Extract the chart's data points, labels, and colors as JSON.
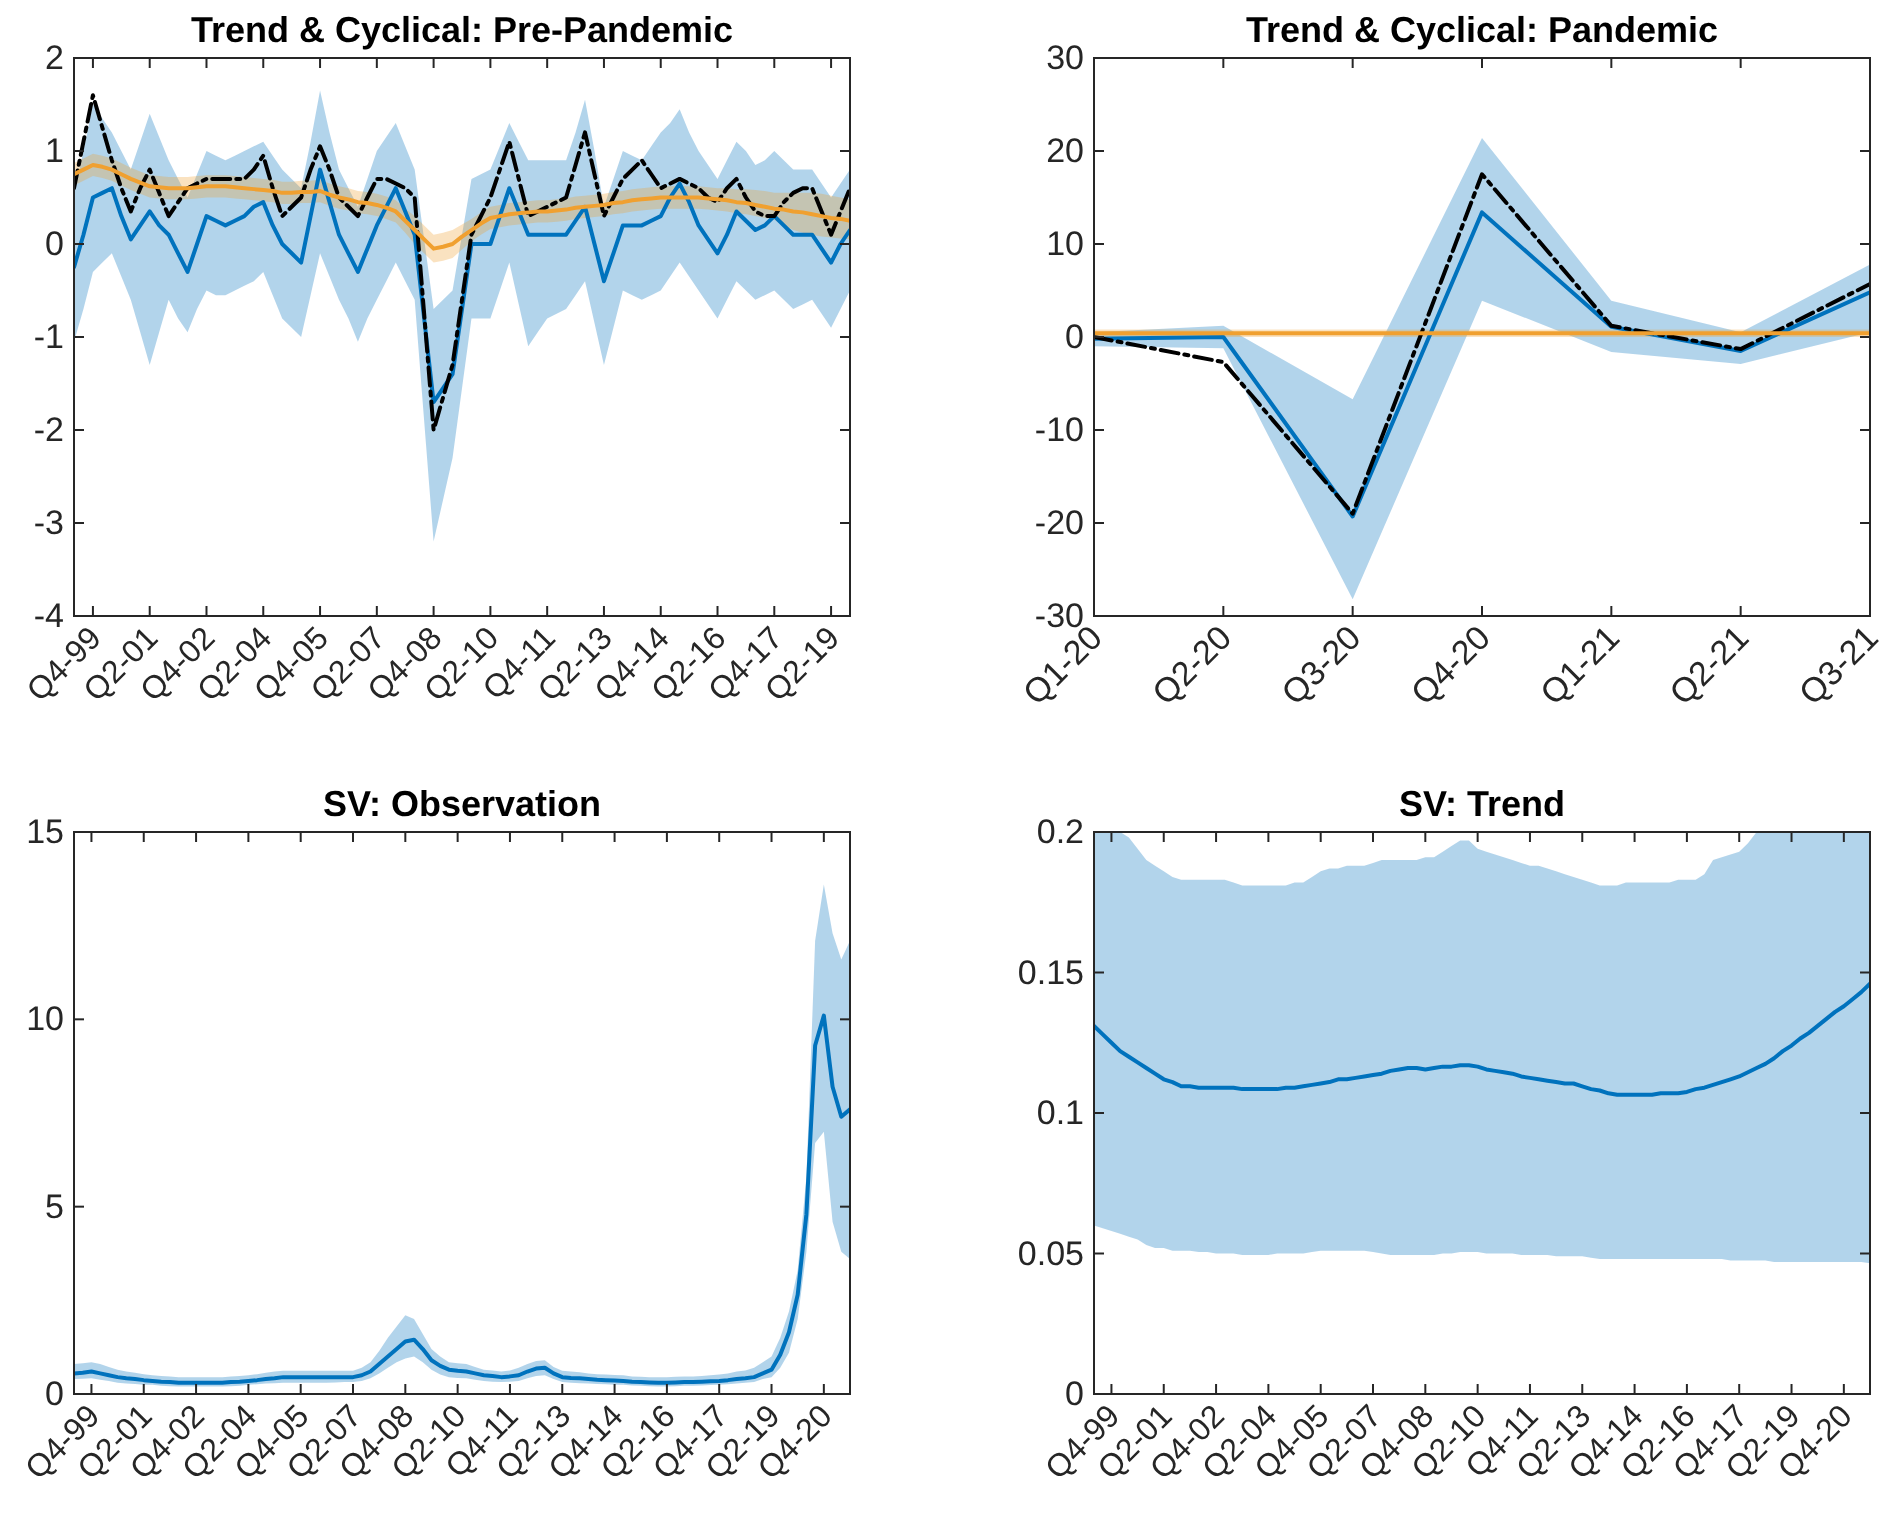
{
  "chart_data": [
    {
      "type": "line",
      "title": "Trend & Cyclical: Pre-Pandemic",
      "ylim": [
        -4,
        2
      ],
      "yticks": [
        -4,
        -3,
        -2,
        -1,
        0,
        1,
        2
      ],
      "categories": [
        null,
        null,
        "Q4-99",
        null,
        null,
        null,
        null,
        null,
        "Q2-01",
        null,
        null,
        null,
        null,
        null,
        "Q4-02",
        null,
        null,
        null,
        null,
        null,
        "Q2-04",
        null,
        null,
        null,
        null,
        null,
        "Q4-05",
        null,
        null,
        null,
        null,
        null,
        "Q2-07",
        null,
        null,
        null,
        null,
        null,
        "Q4-08",
        null,
        null,
        null,
        null,
        null,
        "Q2-10",
        null,
        null,
        null,
        null,
        null,
        "Q4-11",
        null,
        null,
        null,
        null,
        null,
        "Q2-13",
        null,
        null,
        null,
        null,
        null,
        "Q4-14",
        null,
        null,
        null,
        null,
        null,
        "Q2-16",
        null,
        null,
        null,
        null,
        null,
        "Q4-17",
        null,
        null,
        null,
        null,
        null,
        "Q2-19",
        null,
        null
      ],
      "series": [
        {
          "color": "#0072bd",
          "line_style": "solid",
          "values": [
            -0.25,
            0.1,
            0.5,
            0.55,
            0.6,
            0.3,
            0.05,
            0.2,
            0.35,
            0.2,
            0.1,
            -0.1,
            -0.3,
            0.0,
            0.3,
            0.25,
            0.2,
            0.25,
            0.3,
            0.4,
            0.45,
            0.2,
            0.0,
            -0.1,
            -0.2,
            0.3,
            0.8,
            0.45,
            0.1,
            -0.1,
            -0.3,
            -0.05,
            0.2,
            0.4,
            0.6,
            0.35,
            0.1,
            -0.8,
            -1.7,
            -1.55,
            -1.4,
            -0.7,
            0.0,
            0.0,
            0.0,
            0.3,
            0.6,
            0.35,
            0.1,
            0.1,
            0.1,
            0.1,
            0.1,
            0.25,
            0.4,
            0.0,
            -0.4,
            -0.1,
            0.2,
            0.2,
            0.2,
            0.25,
            0.3,
            0.5,
            0.65,
            0.45,
            0.2,
            0.05,
            -0.1,
            0.1,
            0.35,
            0.25,
            0.15,
            0.2,
            0.3,
            0.2,
            0.1,
            0.1,
            0.1,
            -0.05,
            -0.2,
            0.0,
            0.15
          ],
          "lower": [
            -1.05,
            -0.7,
            -0.3,
            -0.2,
            -0.1,
            -0.35,
            -0.6,
            -0.95,
            -1.3,
            -0.95,
            -0.6,
            -0.8,
            -0.95,
            -0.7,
            -0.5,
            -0.55,
            -0.55,
            -0.5,
            -0.45,
            -0.4,
            -0.3,
            -0.55,
            -0.8,
            -0.9,
            -1.0,
            -0.55,
            -0.1,
            -0.35,
            -0.6,
            -0.8,
            -1.05,
            -0.8,
            -0.6,
            -0.4,
            -0.2,
            -0.4,
            -0.6,
            -1.9,
            -3.2,
            -2.75,
            -2.3,
            -1.55,
            -0.8,
            -0.8,
            -0.8,
            -0.5,
            -0.2,
            -0.65,
            -1.1,
            -0.95,
            -0.8,
            -0.75,
            -0.7,
            -0.55,
            -0.4,
            -0.85,
            -1.3,
            -0.9,
            -0.5,
            -0.55,
            -0.6,
            -0.55,
            -0.5,
            -0.35,
            -0.2,
            -0.35,
            -0.5,
            -0.65,
            -0.8,
            -0.6,
            -0.4,
            -0.5,
            -0.6,
            -0.55,
            -0.5,
            -0.6,
            -0.7,
            -0.65,
            -0.6,
            -0.75,
            -0.9,
            -0.7,
            -0.5
          ],
          "upper": [
            0.55,
            1.0,
            1.5,
            1.35,
            1.2,
            1.0,
            0.8,
            1.1,
            1.4,
            1.15,
            0.9,
            0.7,
            0.5,
            0.75,
            1.0,
            0.95,
            0.9,
            0.95,
            1.0,
            1.05,
            1.1,
            0.95,
            0.8,
            0.7,
            0.6,
            1.1,
            1.65,
            1.2,
            0.8,
            0.6,
            0.4,
            0.7,
            1.0,
            1.15,
            1.3,
            1.05,
            0.8,
            0.05,
            -0.7,
            -0.6,
            -0.5,
            0.1,
            0.7,
            0.75,
            0.8,
            1.05,
            1.3,
            1.1,
            0.9,
            0.9,
            0.9,
            0.9,
            0.9,
            1.2,
            1.55,
            1.0,
            0.4,
            0.7,
            1.0,
            0.95,
            0.9,
            1.05,
            1.2,
            1.3,
            1.45,
            1.2,
            1.0,
            0.85,
            0.7,
            0.9,
            1.1,
            1.0,
            0.85,
            0.9,
            1.0,
            0.9,
            0.8,
            0.8,
            0.8,
            0.65,
            0.5,
            0.65,
            0.8
          ]
        },
        {
          "color": "#000000",
          "line_style": "dashed",
          "values": [
            0.6,
            1.1,
            1.6,
            1.25,
            0.9,
            0.6,
            0.35,
            0.6,
            0.8,
            0.55,
            0.3,
            0.45,
            0.6,
            0.65,
            0.7,
            0.7,
            0.7,
            0.7,
            0.7,
            0.8,
            0.95,
            0.6,
            0.3,
            0.4,
            0.5,
            0.8,
            1.05,
            0.8,
            0.5,
            0.4,
            0.3,
            0.5,
            0.7,
            0.7,
            0.65,
            0.6,
            0.5,
            -0.75,
            -2.0,
            -1.65,
            -1.3,
            -0.6,
            0.1,
            0.3,
            0.5,
            0.8,
            1.1,
            0.7,
            0.3,
            0.35,
            0.4,
            0.45,
            0.5,
            0.85,
            1.2,
            0.75,
            0.3,
            0.5,
            0.7,
            0.8,
            0.9,
            0.75,
            0.6,
            0.65,
            0.7,
            0.65,
            0.6,
            0.5,
            0.45,
            0.6,
            0.7,
            0.5,
            0.35,
            0.3,
            0.3,
            0.45,
            0.55,
            0.6,
            0.6,
            0.35,
            0.1,
            0.35,
            0.6
          ]
        },
        {
          "color": "#f0a030",
          "line_style": "solid",
          "values": [
            0.75,
            0.8,
            0.85,
            0.83,
            0.8,
            0.75,
            0.7,
            0.66,
            0.62,
            0.61,
            0.6,
            0.6,
            0.6,
            0.61,
            0.62,
            0.62,
            0.62,
            0.61,
            0.6,
            0.59,
            0.58,
            0.57,
            0.55,
            0.55,
            0.56,
            0.56,
            0.57,
            0.53,
            0.5,
            0.48,
            0.45,
            0.44,
            0.42,
            0.39,
            0.35,
            0.25,
            0.15,
            0.05,
            -0.05,
            -0.03,
            0.0,
            0.08,
            0.15,
            0.22,
            0.28,
            0.3,
            0.32,
            0.33,
            0.34,
            0.35,
            0.35,
            0.36,
            0.37,
            0.39,
            0.4,
            0.41,
            0.42,
            0.44,
            0.45,
            0.47,
            0.48,
            0.49,
            0.5,
            0.5,
            0.5,
            0.5,
            0.5,
            0.49,
            0.48,
            0.47,
            0.45,
            0.44,
            0.42,
            0.4,
            0.38,
            0.37,
            0.35,
            0.34,
            0.32,
            0.3,
            0.28,
            0.27,
            0.25
          ],
          "lower": [
            0.63,
            0.68,
            0.73,
            0.71,
            0.68,
            0.63,
            0.58,
            0.54,
            0.5,
            0.49,
            0.48,
            0.48,
            0.48,
            0.49,
            0.5,
            0.5,
            0.5,
            0.49,
            0.48,
            0.47,
            0.46,
            0.45,
            0.43,
            0.43,
            0.44,
            0.44,
            0.45,
            0.41,
            0.38,
            0.36,
            0.33,
            0.32,
            0.3,
            0.27,
            0.23,
            0.12,
            0.0,
            -0.1,
            -0.2,
            -0.18,
            -0.15,
            -0.06,
            0.03,
            0.1,
            0.16,
            0.18,
            0.2,
            0.21,
            0.22,
            0.23,
            0.23,
            0.24,
            0.25,
            0.27,
            0.28,
            0.29,
            0.3,
            0.32,
            0.33,
            0.35,
            0.36,
            0.37,
            0.38,
            0.38,
            0.38,
            0.38,
            0.38,
            0.37,
            0.36,
            0.35,
            0.33,
            0.32,
            0.3,
            0.28,
            0.26,
            0.2,
            0.15,
            0.12,
            0.1,
            0.08,
            0.07,
            0.06,
            0.05
          ],
          "upper": [
            0.87,
            0.92,
            0.97,
            0.95,
            0.92,
            0.87,
            0.82,
            0.78,
            0.74,
            0.73,
            0.72,
            0.72,
            0.72,
            0.73,
            0.74,
            0.74,
            0.74,
            0.73,
            0.72,
            0.71,
            0.7,
            0.69,
            0.67,
            0.67,
            0.68,
            0.68,
            0.69,
            0.65,
            0.62,
            0.6,
            0.57,
            0.56,
            0.54,
            0.51,
            0.47,
            0.38,
            0.3,
            0.2,
            0.1,
            0.12,
            0.15,
            0.21,
            0.27,
            0.34,
            0.4,
            0.42,
            0.44,
            0.45,
            0.46,
            0.47,
            0.47,
            0.48,
            0.49,
            0.51,
            0.52,
            0.53,
            0.54,
            0.56,
            0.57,
            0.59,
            0.6,
            0.61,
            0.62,
            0.62,
            0.62,
            0.62,
            0.62,
            0.61,
            0.6,
            0.6,
            0.59,
            0.59,
            0.58,
            0.57,
            0.55,
            0.55,
            0.55,
            0.55,
            0.55,
            0.54,
            0.52,
            0.5,
            0.48
          ]
        }
      ]
    },
    {
      "type": "line",
      "title": "Trend & Cyclical: Pandemic",
      "categories": [
        "Q1-20",
        "Q2-20",
        "Q3-20",
        "Q4-20",
        "Q1-21",
        "Q2-21",
        "Q3-21"
      ],
      "ylim": [
        -30,
        30
      ],
      "yticks": [
        -30,
        -20,
        -10,
        0,
        10,
        20,
        30
      ],
      "series": [
        {
          "color": "#0072bd",
          "line_style": "solid",
          "values": [
            -0.2,
            0,
            -19.3,
            13.4,
            1.1,
            -1.5,
            4.8
          ],
          "lower": [
            -1,
            -1.2,
            -28.2,
            3.9,
            -1.6,
            -2.9,
            0.5
          ],
          "upper": [
            0.5,
            1.2,
            -6.7,
            21.4,
            3.9,
            0.5,
            7.8
          ]
        },
        {
          "color": "#000000",
          "line_style": "dashed",
          "values": [
            0,
            -2.7,
            -19,
            17.5,
            1.2,
            -1.3,
            5.7
          ]
        },
        {
          "color": "#f0a030",
          "line_style": "solid",
          "values": [
            0.4,
            0.4,
            0.4,
            0.4,
            0.4,
            0.4,
            0.4
          ],
          "lower": [
            0,
            0,
            0,
            0,
            0,
            0,
            0
          ],
          "upper": [
            0.8,
            0.8,
            0.8,
            0.8,
            0.8,
            0.8,
            0.8
          ]
        }
      ]
    },
    {
      "type": "line",
      "title": "SV: Observation",
      "ylim": [
        0,
        15
      ],
      "yticks": [
        0,
        5,
        10,
        15
      ],
      "categories": [
        null,
        null,
        "Q4-99",
        null,
        null,
        null,
        null,
        null,
        "Q2-01",
        null,
        null,
        null,
        null,
        null,
        "Q4-02",
        null,
        null,
        null,
        null,
        null,
        "Q2-04",
        null,
        null,
        null,
        null,
        null,
        "Q4-05",
        null,
        null,
        null,
        null,
        null,
        "Q2-07",
        null,
        null,
        null,
        null,
        null,
        "Q4-08",
        null,
        null,
        null,
        null,
        null,
        "Q2-10",
        null,
        null,
        null,
        null,
        null,
        "Q4-11",
        null,
        null,
        null,
        null,
        null,
        "Q2-13",
        null,
        null,
        null,
        null,
        null,
        "Q4-14",
        null,
        null,
        null,
        null,
        null,
        "Q2-16",
        null,
        null,
        null,
        null,
        null,
        "Q4-17",
        null,
        null,
        null,
        null,
        null,
        "Q2-19",
        null,
        null,
        null,
        null,
        null,
        "Q4-20",
        null,
        null,
        null
      ],
      "series": [
        {
          "color": "#0072bd",
          "line_style": "solid",
          "values": [
            0.55,
            0.57,
            0.6,
            0.55,
            0.5,
            0.45,
            0.42,
            0.4,
            0.37,
            0.35,
            0.33,
            0.32,
            0.3,
            0.3,
            0.3,
            0.3,
            0.3,
            0.3,
            0.32,
            0.33,
            0.35,
            0.37,
            0.4,
            0.42,
            0.45,
            0.45,
            0.45,
            0.45,
            0.45,
            0.45,
            0.45,
            0.45,
            0.45,
            0.5,
            0.6,
            0.8,
            1.0,
            1.2,
            1.4,
            1.45,
            1.2,
            0.9,
            0.75,
            0.65,
            0.62,
            0.6,
            0.55,
            0.5,
            0.48,
            0.45,
            0.47,
            0.5,
            0.6,
            0.68,
            0.7,
            0.55,
            0.45,
            0.43,
            0.42,
            0.4,
            0.38,
            0.37,
            0.36,
            0.35,
            0.33,
            0.32,
            0.31,
            0.3,
            0.3,
            0.31,
            0.32,
            0.32,
            0.33,
            0.34,
            0.35,
            0.37,
            0.4,
            0.42,
            0.45,
            0.55,
            0.65,
            1.05,
            1.65,
            2.65,
            4.8,
            9.3,
            10.1,
            8.2,
            7.4,
            7.6
          ],
          "lower": [
            0.4,
            0.41,
            0.42,
            0.38,
            0.35,
            0.3,
            0.28,
            0.27,
            0.25,
            0.25,
            0.22,
            0.21,
            0.2,
            0.2,
            0.2,
            0.2,
            0.2,
            0.2,
            0.21,
            0.22,
            0.25,
            0.26,
            0.28,
            0.29,
            0.3,
            0.3,
            0.3,
            0.3,
            0.3,
            0.3,
            0.31,
            0.32,
            0.32,
            0.35,
            0.42,
            0.55,
            0.7,
            0.85,
            0.95,
            1.0,
            0.85,
            0.65,
            0.52,
            0.45,
            0.43,
            0.42,
            0.38,
            0.35,
            0.33,
            0.32,
            0.33,
            0.35,
            0.42,
            0.48,
            0.5,
            0.4,
            0.32,
            0.3,
            0.29,
            0.28,
            0.27,
            0.26,
            0.25,
            0.25,
            0.23,
            0.22,
            0.21,
            0.2,
            0.2,
            0.21,
            0.22,
            0.22,
            0.23,
            0.24,
            0.25,
            0.26,
            0.28,
            0.3,
            0.32,
            0.4,
            0.45,
            0.7,
            1.1,
            2.0,
            3.8,
            6.7,
            7.0,
            4.6,
            3.8,
            3.6
          ],
          "upper": [
            0.8,
            0.82,
            0.85,
            0.8,
            0.72,
            0.65,
            0.6,
            0.57,
            0.53,
            0.5,
            0.48,
            0.47,
            0.45,
            0.45,
            0.45,
            0.45,
            0.45,
            0.45,
            0.47,
            0.48,
            0.5,
            0.53,
            0.57,
            0.6,
            0.62,
            0.62,
            0.62,
            0.62,
            0.62,
            0.62,
            0.62,
            0.62,
            0.62,
            0.7,
            0.85,
            1.15,
            1.5,
            1.8,
            2.1,
            2.0,
            1.6,
            1.2,
            1.0,
            0.85,
            0.82,
            0.8,
            0.72,
            0.65,
            0.63,
            0.6,
            0.63,
            0.7,
            0.8,
            0.88,
            0.9,
            0.72,
            0.62,
            0.6,
            0.58,
            0.55,
            0.53,
            0.52,
            0.51,
            0.5,
            0.47,
            0.46,
            0.45,
            0.45,
            0.45,
            0.46,
            0.47,
            0.47,
            0.48,
            0.5,
            0.52,
            0.55,
            0.6,
            0.63,
            0.7,
            0.85,
            1.0,
            1.5,
            2.2,
            3.3,
            5.8,
            12.1,
            13.6,
            12.3,
            11.6,
            12.1
          ]
        }
      ]
    },
    {
      "type": "line",
      "title": "SV: Trend",
      "ylim": [
        0,
        0.2
      ],
      "yticks": [
        0,
        0.05,
        0.1,
        0.15,
        0.2
      ],
      "categories": [
        null,
        null,
        "Q4-99",
        null,
        null,
        null,
        null,
        null,
        "Q2-01",
        null,
        null,
        null,
        null,
        null,
        "Q4-02",
        null,
        null,
        null,
        null,
        null,
        "Q2-04",
        null,
        null,
        null,
        null,
        null,
        "Q4-05",
        null,
        null,
        null,
        null,
        null,
        "Q2-07",
        null,
        null,
        null,
        null,
        null,
        "Q4-08",
        null,
        null,
        null,
        null,
        null,
        "Q2-10",
        null,
        null,
        null,
        null,
        null,
        "Q4-11",
        null,
        null,
        null,
        null,
        null,
        "Q2-13",
        null,
        null,
        null,
        null,
        null,
        "Q4-14",
        null,
        null,
        null,
        null,
        null,
        "Q2-16",
        null,
        null,
        null,
        null,
        null,
        "Q4-17",
        null,
        null,
        null,
        null,
        null,
        "Q2-19",
        null,
        null,
        null,
        null,
        null,
        "Q4-20",
        null,
        null,
        null
      ],
      "series": [
        {
          "color": "#0072bd",
          "line_style": "solid",
          "values": [
            0.131,
            0.128,
            0.125,
            0.122,
            0.12,
            0.118,
            0.116,
            0.114,
            0.112,
            0.111,
            0.1095,
            0.1095,
            0.109,
            0.109,
            0.109,
            0.109,
            0.109,
            0.1085,
            0.1085,
            0.1085,
            0.1085,
            0.1085,
            0.109,
            0.109,
            0.1095,
            0.11,
            0.1105,
            0.111,
            0.112,
            0.112,
            0.1125,
            0.113,
            0.1135,
            0.114,
            0.115,
            0.1155,
            0.116,
            0.116,
            0.1155,
            0.116,
            0.1165,
            0.1165,
            0.117,
            0.117,
            0.1165,
            0.1155,
            0.115,
            0.1145,
            0.114,
            0.113,
            0.1125,
            0.112,
            0.1115,
            0.111,
            0.1105,
            0.1105,
            0.1095,
            0.1085,
            0.108,
            0.107,
            0.1065,
            0.1065,
            0.1065,
            0.1065,
            0.1065,
            0.107,
            0.107,
            0.107,
            0.1075,
            0.1085,
            0.109,
            0.11,
            0.111,
            0.112,
            0.113,
            0.1145,
            0.116,
            0.1175,
            0.1195,
            0.122,
            0.124,
            0.1265,
            0.1285,
            0.131,
            0.1335,
            0.136,
            0.138,
            0.1405,
            0.143,
            0.146
          ],
          "lower": [
            0.06,
            0.059,
            0.058,
            0.057,
            0.056,
            0.055,
            0.053,
            0.052,
            0.052,
            0.051,
            0.051,
            0.051,
            0.0505,
            0.0505,
            0.05,
            0.05,
            0.05,
            0.0495,
            0.0495,
            0.0495,
            0.0495,
            0.05,
            0.05,
            0.05,
            0.05,
            0.0505,
            0.051,
            0.051,
            0.051,
            0.051,
            0.051,
            0.051,
            0.0505,
            0.05,
            0.0495,
            0.0495,
            0.0495,
            0.0495,
            0.0495,
            0.0495,
            0.05,
            0.05,
            0.0505,
            0.0505,
            0.0505,
            0.05,
            0.05,
            0.05,
            0.05,
            0.0495,
            0.0495,
            0.0495,
            0.0495,
            0.049,
            0.049,
            0.049,
            0.049,
            0.0485,
            0.048,
            0.048,
            0.048,
            0.048,
            0.048,
            0.048,
            0.048,
            0.048,
            0.048,
            0.048,
            0.048,
            0.048,
            0.048,
            0.048,
            0.048,
            0.0475,
            0.0475,
            0.0475,
            0.0475,
            0.0475,
            0.047,
            0.047,
            0.047,
            0.047,
            0.047,
            0.047,
            0.047,
            0.047,
            0.047,
            0.047,
            0.047,
            0.0465
          ],
          "upper": [
            0.2,
            0.2,
            0.2,
            0.2,
            0.198,
            0.194,
            0.19,
            0.188,
            0.186,
            0.184,
            0.183,
            0.183,
            0.183,
            0.183,
            0.183,
            0.183,
            0.182,
            0.181,
            0.181,
            0.181,
            0.181,
            0.181,
            0.181,
            0.182,
            0.182,
            0.184,
            0.186,
            0.187,
            0.187,
            0.188,
            0.188,
            0.188,
            0.189,
            0.19,
            0.19,
            0.19,
            0.19,
            0.19,
            0.191,
            0.191,
            0.193,
            0.195,
            0.197,
            0.197,
            0.194,
            0.193,
            0.192,
            0.191,
            0.19,
            0.189,
            0.188,
            0.188,
            0.187,
            0.186,
            0.185,
            0.184,
            0.183,
            0.182,
            0.181,
            0.181,
            0.181,
            0.182,
            0.182,
            0.182,
            0.182,
            0.182,
            0.182,
            0.183,
            0.183,
            0.183,
            0.185,
            0.19,
            0.191,
            0.192,
            0.193,
            0.196,
            0.2,
            0.2,
            0.2,
            0.2,
            0.2,
            0.2,
            0.2,
            0.2,
            0.2,
            0.2,
            0.2,
            0.2,
            0.2,
            0.2
          ]
        }
      ]
    }
  ]
}
